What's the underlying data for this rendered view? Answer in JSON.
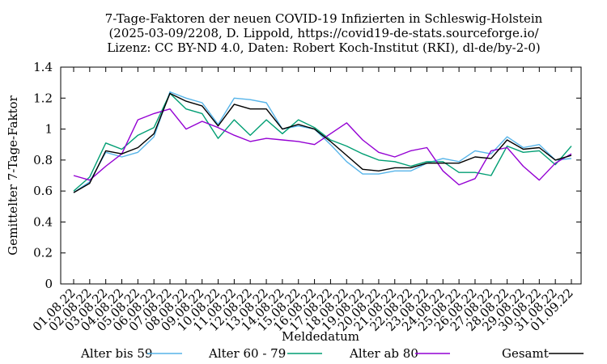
{
  "chart_data": {
    "type": "line",
    "title": [
      "7-Tage-Faktoren der neuen COVID-19 Infizierten in Schleswig-Holstein",
      "(2025-03-09/2208, D. Lippold, https://covid19-de-stats.sourceforge.io/",
      "Lizenz: CC BY-ND 4.0, Daten: Robert Koch-Institut (RKI), dl-de/by-2-0)"
    ],
    "xlabel": "Meldedatum",
    "ylabel": "Gemittelter 7-Tage-Faktor",
    "ylim": [
      0,
      1.4
    ],
    "yticks": [
      "0",
      "0.2",
      "0.4",
      "0.6",
      "0.8",
      "1",
      "1.2",
      "1.4"
    ],
    "grid": false,
    "legend_position": "bottom",
    "categories": [
      "01.08.22",
      "02.08.22",
      "03.08.22",
      "04.08.22",
      "05.08.22",
      "06.08.22",
      "07.08.22",
      "08.08.22",
      "09.08.22",
      "10.08.22",
      "11.08.22",
      "12.08.22",
      "13.08.22",
      "14.08.22",
      "15.08.22",
      "16.08.22",
      "17.08.22",
      "18.08.22",
      "19.08.22",
      "20.08.22",
      "21.08.22",
      "22.08.22",
      "23.08.22",
      "24.08.22",
      "25.08.22",
      "26.08.22",
      "27.08.22",
      "28.08.22",
      "29.08.22",
      "30.08.22",
      "31.08.22",
      "01.09.22"
    ],
    "series": [
      {
        "name": "Alter bis 59",
        "color": "#56b4e9",
        "values": [
          0.59,
          0.66,
          0.85,
          0.82,
          0.85,
          0.95,
          1.24,
          1.2,
          1.17,
          1.03,
          1.2,
          1.19,
          1.17,
          1.0,
          1.02,
          1.0,
          0.9,
          0.79,
          0.71,
          0.71,
          0.73,
          0.73,
          0.78,
          0.81,
          0.79,
          0.86,
          0.84,
          0.95,
          0.88,
          0.9,
          0.8,
          0.81
        ]
      },
      {
        "name": "Alter 60 - 79",
        "color": "#009e73",
        "values": [
          0.6,
          0.69,
          0.91,
          0.87,
          0.96,
          1.01,
          1.23,
          1.13,
          1.1,
          0.94,
          1.06,
          0.96,
          1.06,
          0.97,
          1.06,
          1.01,
          0.93,
          0.89,
          0.84,
          0.8,
          0.79,
          0.76,
          0.79,
          0.79,
          0.72,
          0.72,
          0.7,
          0.89,
          0.85,
          0.86,
          0.77,
          0.89
        ]
      },
      {
        "name": "Alter ab 80",
        "color": "#9400d3",
        "values": [
          0.7,
          0.67,
          0.76,
          0.84,
          1.06,
          1.1,
          1.13,
          1.0,
          1.05,
          1.01,
          0.96,
          0.92,
          0.94,
          0.93,
          0.92,
          0.9,
          0.97,
          1.04,
          0.93,
          0.85,
          0.82,
          0.86,
          0.88,
          0.73,
          0.64,
          0.68,
          0.86,
          0.88,
          0.76,
          0.67,
          0.78,
          0.84
        ]
      },
      {
        "name": "Gesamt",
        "color": "#000000",
        "values": [
          0.59,
          0.65,
          0.86,
          0.84,
          0.88,
          0.97,
          1.23,
          1.18,
          1.15,
          1.02,
          1.16,
          1.13,
          1.13,
          1.0,
          1.03,
          1.0,
          0.92,
          0.83,
          0.74,
          0.73,
          0.75,
          0.75,
          0.78,
          0.78,
          0.78,
          0.82,
          0.81,
          0.93,
          0.87,
          0.88,
          0.8,
          0.83
        ]
      }
    ]
  }
}
